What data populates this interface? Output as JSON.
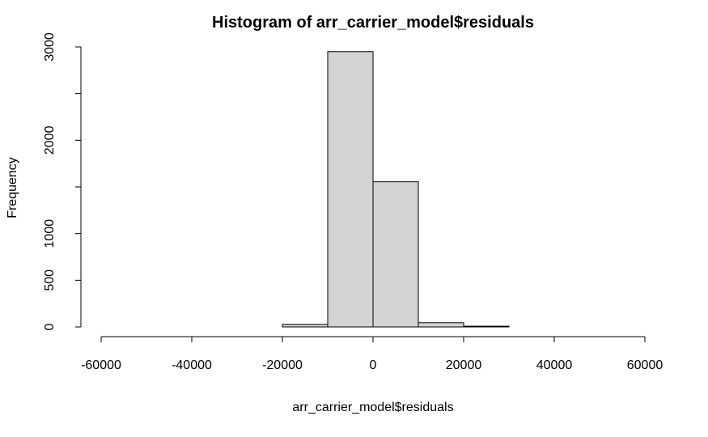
{
  "chart_data": {
    "type": "bar",
    "title": "Histogram of arr_carrier_model$residuals",
    "xlabel": "arr_carrier_model$residuals",
    "ylabel": "Frequency",
    "bins": [
      {
        "start": -60000,
        "end": -50000,
        "count": 0
      },
      {
        "start": -50000,
        "end": -40000,
        "count": 0
      },
      {
        "start": -40000,
        "end": -30000,
        "count": 0
      },
      {
        "start": -30000,
        "end": -20000,
        "count": 0
      },
      {
        "start": -20000,
        "end": -10000,
        "count": 28
      },
      {
        "start": -10000,
        "end": 0,
        "count": 2950
      },
      {
        "start": 0,
        "end": 10000,
        "count": 1555
      },
      {
        "start": 10000,
        "end": 20000,
        "count": 45
      },
      {
        "start": 20000,
        "end": 30000,
        "count": 8
      },
      {
        "start": 30000,
        "end": 40000,
        "count": 0
      },
      {
        "start": 40000,
        "end": 50000,
        "count": 0
      },
      {
        "start": 50000,
        "end": 60000,
        "count": 0
      }
    ],
    "xlim": [
      -60000,
      60000
    ],
    "ylim": [
      0,
      3000
    ],
    "xticks": [
      -60000,
      -40000,
      -20000,
      0,
      20000,
      40000,
      60000
    ],
    "xtick_labels": [
      "-60000",
      "-40000",
      "-20000",
      "0",
      "20000",
      "40000",
      "60000"
    ],
    "yticks": [
      0,
      500,
      1000,
      1500,
      2000,
      2500,
      3000
    ],
    "ytick_labels": [
      "0",
      "500",
      "1000",
      "",
      "2000",
      "",
      "3000"
    ],
    "bar_color": "#d3d3d3",
    "edge_color": "#000000",
    "grid": false,
    "legend": "none"
  }
}
